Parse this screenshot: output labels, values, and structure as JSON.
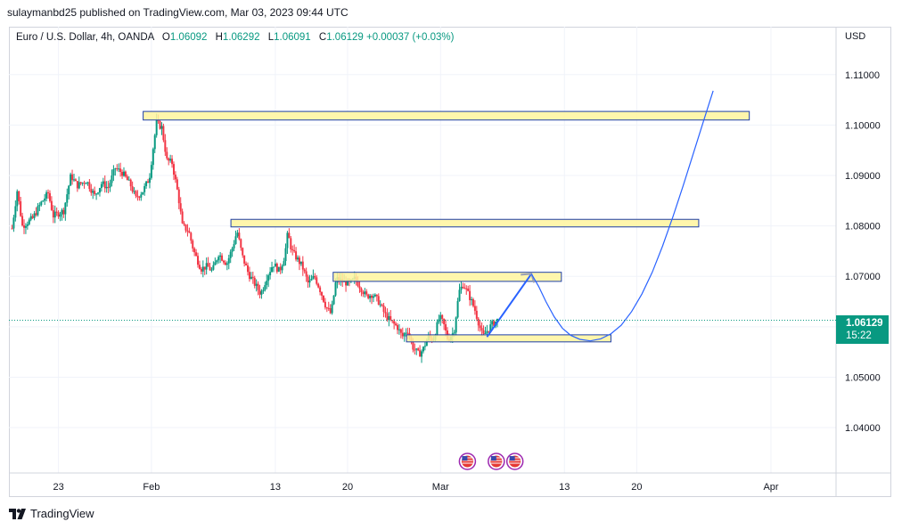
{
  "header": {
    "publish_line": "sulaymanbd25 published on TradingView.com, Mar 03, 2023 09:44 UTC"
  },
  "legend": {
    "symbol": "Euro / U.S. Dollar, 4h, OANDA",
    "open_label": "O",
    "open": "1.06092",
    "high_label": "H",
    "high": "1.06292",
    "low_label": "L",
    "low": "1.06091",
    "close_label": "C",
    "close": "1.06129",
    "change": "+0.00037 (+0.03%)"
  },
  "price_axis": {
    "currency": "USD",
    "last_price": "1.06129",
    "countdown": "15:22"
  },
  "footer": {
    "brand": "TradingView"
  },
  "colors": {
    "up": "#089981",
    "down": "#f23645",
    "zone_fill": "#fff59d",
    "zone_border": "#1e3fa8",
    "projection": "#2962ff"
  },
  "chart_data": {
    "type": "candlestick",
    "title": "Euro / U.S. Dollar, 4h, OANDA",
    "ylim": [
      1.031,
      1.1195
    ],
    "y_ticks": [
      1.04,
      1.05,
      1.06,
      1.07,
      1.08,
      1.09,
      1.1,
      1.11
    ],
    "y_tick_labels": [
      "1.04000",
      "1.05000",
      "",
      "1.07000",
      "1.08000",
      "1.09000",
      "1.10000",
      "1.11000"
    ],
    "x_ticks": [
      {
        "day": -8,
        "label": "23"
      },
      {
        "day": 1,
        "label": "Feb"
      },
      {
        "day": 13,
        "label": "13"
      },
      {
        "day": 20,
        "label": "20"
      },
      {
        "day": 29,
        "label": "Mar"
      },
      {
        "day": 41,
        "label": "13"
      },
      {
        "day": 48,
        "label": "20"
      },
      {
        "day": 61,
        "label": "Apr"
      }
    ],
    "xlim": [
      -12.8,
      67.3
    ],
    "last_price": 1.06129,
    "price_path": [
      [
        -12.5,
        1.0795
      ],
      [
        -12.0,
        1.087
      ],
      [
        -11.5,
        1.08
      ],
      [
        -10.5,
        1.0815
      ],
      [
        -9.7,
        1.0845
      ],
      [
        -9.0,
        1.0865
      ],
      [
        -8.5,
        1.082
      ],
      [
        -7.5,
        1.083
      ],
      [
        -6.8,
        1.09
      ],
      [
        -6.2,
        1.088
      ],
      [
        -5.3,
        1.089
      ],
      [
        -4.5,
        1.086
      ],
      [
        -3.8,
        1.0885
      ],
      [
        -3.2,
        1.0875
      ],
      [
        -2.5,
        1.0915
      ],
      [
        -1.8,
        1.0905
      ],
      [
        -1.0,
        1.088
      ],
      [
        -0.5,
        1.0855
      ],
      [
        0.2,
        1.087
      ],
      [
        0.8,
        1.0895
      ],
      [
        1.2,
        1.096
      ],
      [
        1.5,
        1.1005
      ],
      [
        2.0,
        1.0995
      ],
      [
        2.5,
        1.093
      ],
      [
        3.0,
        1.0925
      ],
      [
        3.6,
        1.086
      ],
      [
        4.0,
        1.08
      ],
      [
        4.6,
        1.079
      ],
      [
        5.1,
        1.075
      ],
      [
        5.8,
        1.0715
      ],
      [
        6.4,
        1.072
      ],
      [
        6.9,
        1.071
      ],
      [
        7.5,
        1.0745
      ],
      [
        8.3,
        1.0725
      ],
      [
        8.9,
        1.076
      ],
      [
        9.3,
        1.079
      ],
      [
        9.8,
        1.074
      ],
      [
        10.4,
        1.0705
      ],
      [
        11.0,
        1.0685
      ],
      [
        11.6,
        1.0665
      ],
      [
        12.2,
        1.07
      ],
      [
        12.8,
        1.0725
      ],
      [
        13.4,
        1.071
      ],
      [
        13.9,
        1.074
      ],
      [
        14.2,
        1.0785
      ],
      [
        14.6,
        1.075
      ],
      [
        15.1,
        1.0735
      ],
      [
        15.6,
        1.072
      ],
      [
        16.2,
        1.0685
      ],
      [
        16.8,
        1.07
      ],
      [
        17.4,
        1.067
      ],
      [
        17.9,
        1.064
      ],
      [
        18.4,
        1.0625
      ],
      [
        18.9,
        1.0695
      ],
      [
        19.5,
        1.069
      ],
      [
        20.2,
        1.0685
      ],
      [
        20.7,
        1.0695
      ],
      [
        21.2,
        1.068
      ],
      [
        21.8,
        1.066
      ],
      [
        22.4,
        1.0665
      ],
      [
        23.0,
        1.065
      ],
      [
        23.6,
        1.0625
      ],
      [
        24.2,
        1.061
      ],
      [
        24.8,
        1.06
      ],
      [
        25.3,
        1.058
      ],
      [
        25.8,
        1.0595
      ],
      [
        26.3,
        1.056
      ],
      [
        26.9,
        1.0545
      ],
      [
        27.3,
        1.0555
      ],
      [
        27.8,
        1.058
      ],
      [
        28.3,
        1.0575
      ],
      [
        28.9,
        1.062
      ],
      [
        29.3,
        1.0605
      ],
      [
        29.7,
        1.0575
      ],
      [
        30.3,
        1.059
      ],
      [
        30.8,
        1.067
      ],
      [
        31.2,
        1.0685
      ],
      [
        31.8,
        1.066
      ],
      [
        32.3,
        1.0635
      ],
      [
        32.8,
        1.06
      ],
      [
        33.1,
        1.058
      ],
      [
        33.6,
        1.0595
      ],
      [
        34.0,
        1.0605
      ],
      [
        34.5,
        1.0613
      ]
    ],
    "zones": [
      {
        "x0": 0.2,
        "x1": 58.9,
        "y0": 1.101,
        "y1": 1.1027
      },
      {
        "x0": 8.7,
        "x1": 54.0,
        "y0": 1.0798,
        "y1": 1.0813
      },
      {
        "x0": 18.6,
        "x1": 40.7,
        "y0": 1.069,
        "y1": 1.0708
      },
      {
        "x0": 25.7,
        "x1": 45.5,
        "y0": 1.057,
        "y1": 1.0584
      }
    ],
    "projection_arrow": [
      [
        33.5,
        1.058
      ],
      [
        37.8,
        1.0705
      ]
    ],
    "projection_curve": [
      [
        37.8,
        1.0705
      ],
      [
        38.5,
        1.068
      ],
      [
        39.2,
        1.065
      ],
      [
        40.0,
        1.062
      ],
      [
        40.8,
        1.0597
      ],
      [
        41.6,
        1.0583
      ],
      [
        42.5,
        1.0575
      ],
      [
        43.5,
        1.0572
      ],
      [
        44.5,
        1.0576
      ],
      [
        45.5,
        1.0586
      ],
      [
        46.5,
        1.0603
      ],
      [
        47.5,
        1.063
      ],
      [
        48.5,
        1.0665
      ],
      [
        49.5,
        1.0708
      ],
      [
        50.5,
        1.076
      ],
      [
        51.5,
        1.0818
      ],
      [
        52.5,
        1.088
      ],
      [
        53.5,
        1.0945
      ],
      [
        54.5,
        1.101
      ],
      [
        55.4,
        1.1068
      ]
    ],
    "event_markers": [
      {
        "day": 31.6
      },
      {
        "day": 34.4
      },
      {
        "day": 36.2
      }
    ]
  }
}
